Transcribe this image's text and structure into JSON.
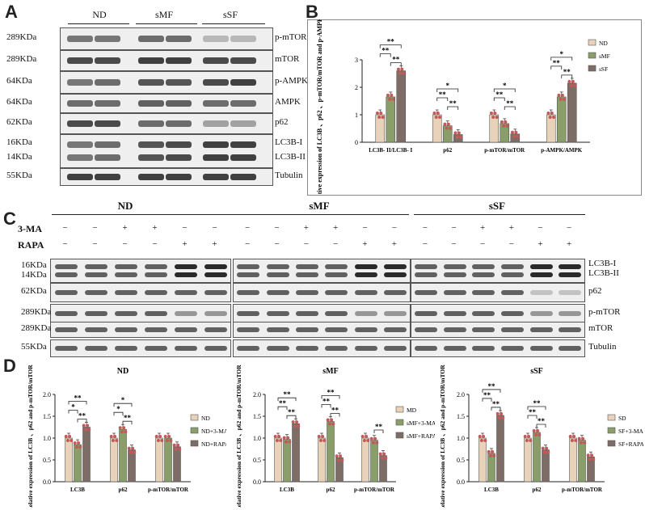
{
  "panels": [
    "A",
    "B",
    "C",
    "D"
  ],
  "A": {
    "groups": [
      "ND",
      "sMF",
      "sSF"
    ],
    "rows": [
      {
        "kda": "289KDa",
        "protein": "p-mTOR",
        "intensity": [
          0.55,
          0.55,
          0.6,
          0.6,
          0.25,
          0.25
        ]
      },
      {
        "kda": "289KDa",
        "protein": "mTOR",
        "intensity": [
          0.75,
          0.75,
          0.8,
          0.8,
          0.75,
          0.75
        ]
      },
      {
        "kda": "64KDa",
        "protein": "p-AMPK",
        "intensity": [
          0.55,
          0.6,
          0.7,
          0.7,
          0.75,
          0.8
        ]
      },
      {
        "kda": "64KDa",
        "protein": "AMPK",
        "intensity": [
          0.6,
          0.6,
          0.65,
          0.65,
          0.6,
          0.6
        ]
      },
      {
        "kda": "62KDa",
        "protein": "p62",
        "intensity": [
          0.75,
          0.75,
          0.6,
          0.6,
          0.35,
          0.35
        ]
      },
      {
        "kda": "16KDa",
        "kda2": "14KDa",
        "protein": "LC3B-I",
        "protein2": "LC3B-II",
        "intensity": [
          0.55,
          0.6,
          0.7,
          0.75,
          0.8,
          0.8
        ]
      },
      {
        "kda": "55KDa",
        "protein": "Tubulin",
        "intensity": [
          0.8,
          0.8,
          0.8,
          0.8,
          0.8,
          0.8
        ]
      }
    ]
  },
  "C": {
    "groups": [
      "ND",
      "sMF",
      "sSF"
    ],
    "treat_labels": [
      "3-MA",
      "RAPA"
    ],
    "ma_signs": [
      "−",
      "−",
      "+",
      "+",
      "−",
      "−"
    ],
    "rapa_signs": [
      "−",
      "−",
      "−",
      "−",
      "+",
      "+"
    ],
    "rows": [
      {
        "kda": "16KDa",
        "kda2": "14KDa",
        "protein": "LC3B-I",
        "protein2": "LC3B-II"
      },
      {
        "kda": "62KDa",
        "protein": "p62"
      },
      {
        "kda": "289KDa",
        "protein": "p-mTOR"
      },
      {
        "kda": "289KDa",
        "protein": "mTOR"
      },
      {
        "kda": "55KDa",
        "protein": "Tubulin"
      }
    ]
  },
  "chart_data": [
    {
      "panel": "B",
      "type": "bar",
      "ylabel": "Relative expression of LC3B 、p62 、p-mTOR/mTOR and p-AMPK/AMPK",
      "ylim": [
        0,
        3
      ],
      "yticks": [
        "0",
        "1",
        "2",
        "3"
      ],
      "categories": [
        "LC3B- II/LC3B- I",
        "p62",
        "p-mTOR/mTOR",
        "p-AMPK/AMPK"
      ],
      "series": [
        {
          "name": "ND",
          "color": "#e8d3ba",
          "values": [
            1.0,
            1.0,
            1.0,
            1.0
          ]
        },
        {
          "name": "sMF",
          "color": "#8a9e6a",
          "values": [
            1.65,
            0.6,
            0.68,
            1.65
          ]
        },
        {
          "name": "sSF",
          "color": "#7e6d66",
          "values": [
            2.6,
            0.28,
            0.3,
            2.15
          ]
        }
      ],
      "annotations": [
        "**",
        "**",
        "**",
        "**",
        "**",
        "*",
        "**",
        "**",
        "*",
        "**",
        "**",
        "*"
      ]
    },
    {
      "panel": "D-ND",
      "title": "ND",
      "type": "bar",
      "ylabel": "Relative expression of LC3B 、p62 and p-mTOR/mTOR",
      "ylim": [
        0,
        2.0
      ],
      "yticks": [
        "0.0",
        "0.5",
        "1.0",
        "1.5",
        "2.0"
      ],
      "categories": [
        "LC3B",
        "p62",
        "p-mTOR/mTOR"
      ],
      "series": [
        {
          "name": "ND",
          "color": "#e8d3ba",
          "values": [
            1.0,
            1.0,
            1.0
          ]
        },
        {
          "name": "ND+3-MA",
          "color": "#8a9e6a",
          "values": [
            0.85,
            1.2,
            1.0
          ]
        },
        {
          "name": "ND+RAPA",
          "color": "#7e6d66",
          "values": [
            1.25,
            0.73,
            0.8
          ]
        }
      ],
      "annotations": [
        "**",
        "*",
        "**",
        "**",
        "*",
        "*"
      ]
    },
    {
      "panel": "D-sMF",
      "title": "sMF",
      "type": "bar",
      "ylabel": "Relative expression of LC3B 、p62 and p-mTOR/mTOR",
      "ylim": [
        0,
        2.0
      ],
      "yticks": [
        "0.0",
        "0.5",
        "1.0",
        "1.5",
        "2.0"
      ],
      "categories": [
        "LC3B",
        "p62",
        "p-mTOR/mTOR"
      ],
      "series": [
        {
          "name": "MD",
          "color": "#e8d3ba",
          "values": [
            1.0,
            1.0,
            1.0
          ]
        },
        {
          "name": "sMF+3-MA",
          "color": "#8a9e6a",
          "values": [
            0.97,
            1.38,
            0.95
          ]
        },
        {
          "name": "sMF+RAPA",
          "color": "#7e6d66",
          "values": [
            1.33,
            0.55,
            0.6
          ]
        }
      ],
      "annotations": [
        "**",
        "**",
        "**",
        "**",
        "**",
        "**",
        "**"
      ]
    },
    {
      "panel": "D-sSF",
      "title": "sSF",
      "type": "bar",
      "ylabel": "Relative expression of LC3B 、p62 and p-mTOR/mTOR",
      "ylim": [
        0,
        2.0
      ],
      "yticks": [
        "0.0",
        "0.5",
        "1.0",
        "1.5",
        "2.0"
      ],
      "categories": [
        "LC3B",
        "p62",
        "p-mTOR/mTOR"
      ],
      "series": [
        {
          "name": "SD",
          "color": "#e8d3ba",
          "values": [
            1.0,
            1.0,
            1.0
          ]
        },
        {
          "name": "SF+3-MA",
          "color": "#8a9e6a",
          "values": [
            0.65,
            1.13,
            0.95
          ]
        },
        {
          "name": "SF+RAPA",
          "color": "#7e6d66",
          "values": [
            1.52,
            0.73,
            0.57
          ]
        }
      ],
      "annotations": [
        "**",
        "**",
        "**",
        "**",
        "**",
        "**"
      ]
    }
  ]
}
